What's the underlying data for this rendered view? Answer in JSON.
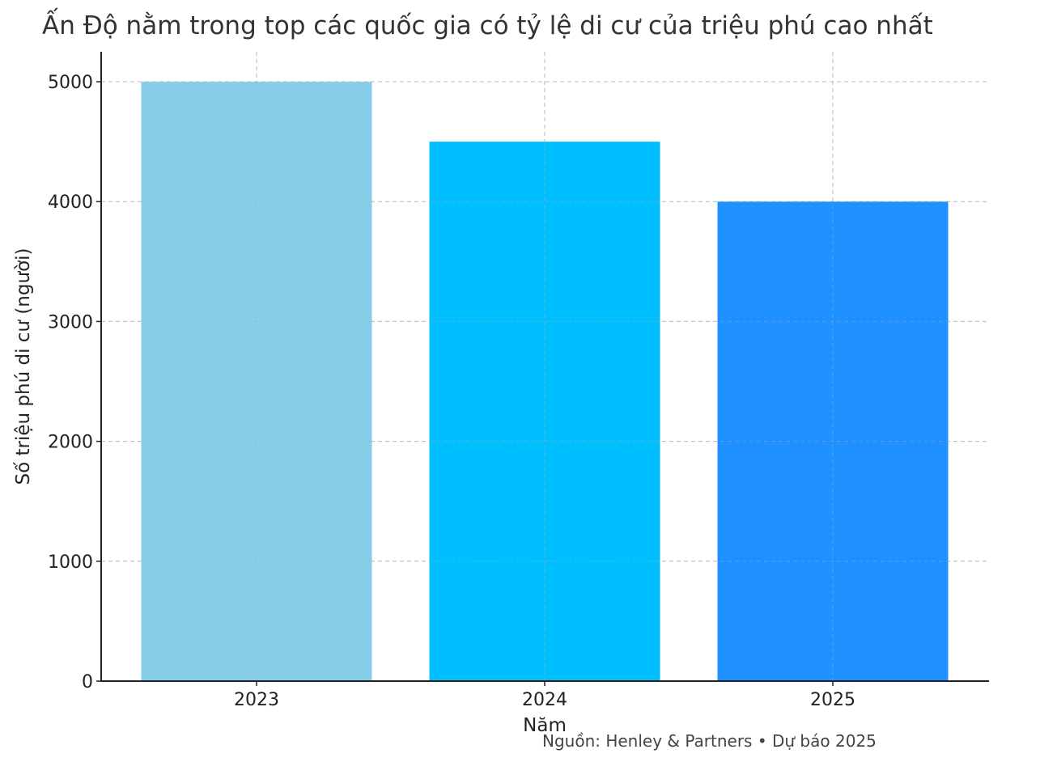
{
  "chart_data": {
    "type": "bar",
    "title": "Ấn Độ nằm trong top các quốc gia có tỷ lệ di cư của triệu phú cao nhất",
    "xlabel": "Năm",
    "ylabel": "Số triệu phú di cư (người)",
    "categories": [
      "2023",
      "2024",
      "2025"
    ],
    "values": [
      5000,
      4500,
      4000
    ],
    "colors": [
      "#87ceeb",
      "#00bfff",
      "#1e90ff"
    ],
    "ylim": [
      0,
      5250
    ],
    "yticks": [
      0,
      1000,
      2000,
      3000,
      4000,
      5000
    ],
    "grid": true,
    "legend": "none",
    "source_note": "Nguồn: Henley & Partners • Dự báo 2025"
  }
}
